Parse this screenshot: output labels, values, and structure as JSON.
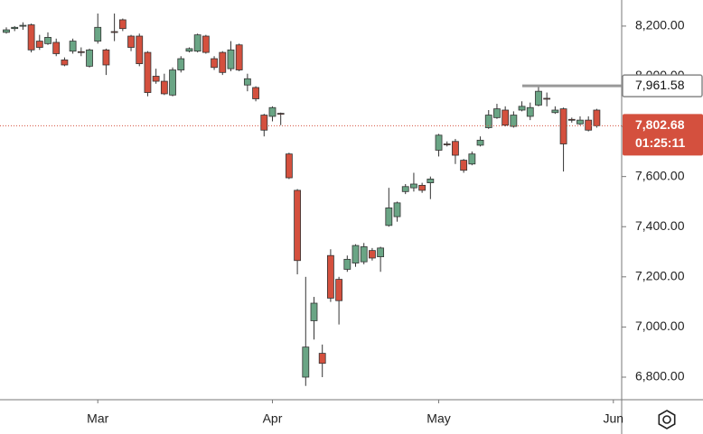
{
  "chart_data": {
    "type": "candlestick",
    "open": [
      8175,
      8190,
      8200,
      8205,
      8140,
      8130,
      8135,
      8065,
      8100,
      8098,
      8040,
      8140,
      8105,
      8178,
      8225,
      8160,
      8160,
      8095,
      8000,
      7980,
      7925,
      8025,
      8100,
      8100,
      8160,
      8070,
      8095,
      8030,
      8125,
      7965,
      7955,
      7845,
      7840,
      7852,
      7690,
      7545,
      6800,
      7025,
      6895,
      7285,
      7190,
      7230,
      7255,
      7260,
      7305,
      7280,
      7405,
      7440,
      7540,
      7555,
      7565,
      7575,
      7705,
      7730,
      7740,
      7665,
      7650,
      7725,
      7795,
      7835,
      7865,
      7800,
      7865,
      7840,
      7885,
      7912,
      7855,
      7870,
      7828,
      7810,
      7825,
      7865
    ],
    "high": [
      8195,
      8200,
      8215,
      8210,
      8165,
      8175,
      8150,
      8075,
      8150,
      8115,
      8110,
      8250,
      8110,
      8250,
      8230,
      8165,
      8170,
      8100,
      8030,
      8010,
      8035,
      8080,
      8115,
      8170,
      8165,
      8080,
      8100,
      8140,
      8130,
      8010,
      7960,
      7850,
      7880,
      7855,
      7695,
      7550,
      7200,
      7120,
      6930,
      7310,
      7200,
      7285,
      7330,
      7335,
      7315,
      7320,
      7555,
      7500,
      7570,
      7615,
      7575,
      7600,
      7770,
      7740,
      7750,
      7670,
      7700,
      7760,
      7865,
      7890,
      7880,
      7860,
      7900,
      7895,
      7960,
      7935,
      7880,
      7875,
      7835,
      7840,
      7840,
      7870
    ],
    "low": [
      8170,
      8180,
      8185,
      8095,
      8105,
      8125,
      8080,
      8040,
      8090,
      8080,
      8035,
      8130,
      8005,
      8140,
      8180,
      8100,
      8040,
      7920,
      7970,
      7925,
      7920,
      8015,
      8095,
      8095,
      8090,
      8025,
      8005,
      8020,
      8020,
      7940,
      7900,
      7760,
      7820,
      7805,
      7590,
      7210,
      6765,
      6950,
      6800,
      7100,
      7010,
      7220,
      7240,
      7250,
      7265,
      7220,
      7400,
      7420,
      7530,
      7540,
      7535,
      7510,
      7680,
      7720,
      7650,
      7615,
      7645,
      7720,
      7790,
      7830,
      7800,
      7795,
      7860,
      7825,
      7880,
      7880,
      7850,
      7620,
      7815,
      7805,
      7780,
      7795
    ],
    "close": [
      8185,
      8195,
      8203,
      8105,
      8115,
      8155,
      8090,
      8045,
      8140,
      8095,
      8105,
      8195,
      8045,
      8175,
      8190,
      8115,
      8050,
      7935,
      7980,
      7930,
      8025,
      8070,
      8110,
      8165,
      8095,
      8035,
      8015,
      8105,
      8025,
      7990,
      7910,
      7785,
      7875,
      7850,
      7595,
      7265,
      6920,
      7095,
      6855,
      7115,
      7105,
      7270,
      7325,
      7320,
      7275,
      7315,
      7475,
      7495,
      7560,
      7570,
      7545,
      7590,
      7765,
      7728,
      7685,
      7625,
      7690,
      7745,
      7845,
      7870,
      7805,
      7845,
      7880,
      7875,
      7940,
      7910,
      7865,
      7730,
      7825,
      7825,
      7785,
      7802.68
    ],
    "up_color": "#6aa585",
    "down_color": "#d4503e",
    "ylim": [
      6710,
      8304
    ],
    "yticks": [
      {
        "value": 6800,
        "label": "6,800.00"
      },
      {
        "value": 7000,
        "label": "7,000.00"
      },
      {
        "value": 7200,
        "label": "7,200.00"
      },
      {
        "value": 7400,
        "label": "7,400.00"
      },
      {
        "value": 7600,
        "label": "7,600.00"
      },
      {
        "value": 7800,
        "label": "7,800.00"
      },
      {
        "value": 8000,
        "label": "8,000.00"
      },
      {
        "value": 8200,
        "label": "8,200.00"
      }
    ],
    "xlim": [
      -0.76,
      74
    ],
    "xticks": [
      {
        "value": 11,
        "label": "Mar"
      },
      {
        "value": 32,
        "label": "Apr"
      },
      {
        "value": 52,
        "label": "May"
      },
      {
        "value": 73,
        "label": "Jun"
      }
    ],
    "marker_line": {
      "value": 7961.58,
      "label": "7,961.58"
    },
    "last_price": {
      "value": 7802.68,
      "label": "7,802.68",
      "countdown": "01:25:11"
    }
  }
}
